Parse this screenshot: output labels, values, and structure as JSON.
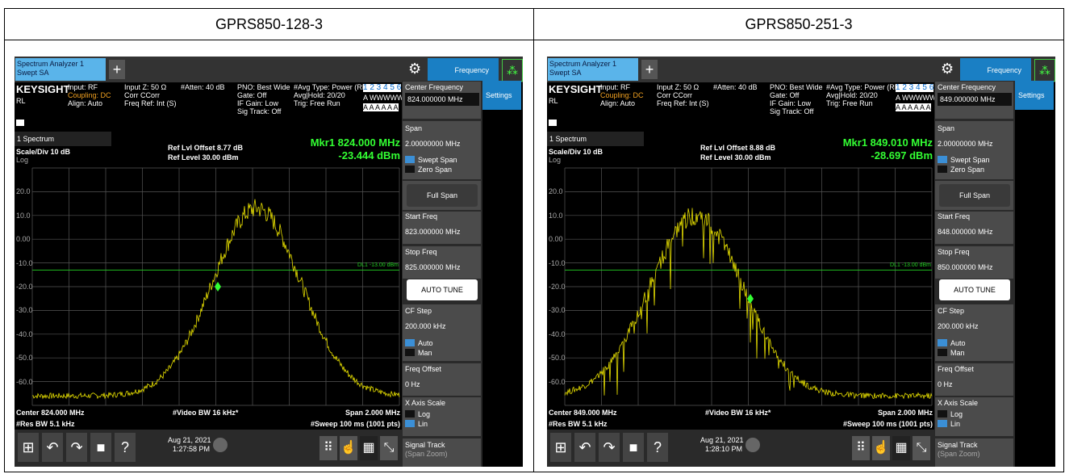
{
  "header": [
    "GPRS850-128-3",
    "GPRS850-251-3"
  ],
  "panels": [
    {
      "tab1": "Spectrum Analyzer 1",
      "tab2": "Swept SA",
      "freq_tab": "Frequency",
      "brand": "KEYSIGHT",
      "rl": "RL",
      "input": "Input: RF",
      "coupling": "Coupling: DC",
      "align": "Align: Auto",
      "input_z": "Input Z: 50 Ω",
      "corr": "Corr CCorr",
      "freq_ref": "Freq Ref: Int (S)",
      "atten": "#Atten: 40 dB",
      "pno": "PNO: Best Wide",
      "gate": "Gate: Off",
      "if_gain": "IF Gain: Low",
      "sig_track": "Sig Track: Off",
      "avg_type": "#Avg Type: Power (RMS)",
      "avg_hold": "Avg|Hold: 20/20",
      "trig": "Trig: Free Run",
      "trace_nums": "1 2 3 4 5 6",
      "trace_types": "A WWWWW",
      "detectors": "A A A A A A",
      "window": "1 Spectrum",
      "scale": "Scale/Div 10 dB",
      "log": "Log",
      "ref_offset": "Ref Lvl Offset 8.77 dB",
      "ref_level": "Ref Level 30.00 dBm",
      "mkr_freq": "Mkr1  824.000 MHz",
      "mkr_amp": "-23.444 dBm",
      "y_labels": [
        "20.0",
        "10.0",
        "0.00",
        "-10.0",
        "-20.0",
        "-30.0",
        "-40.0",
        "-50.0",
        "-60.0"
      ],
      "dl": "DL1 -13.00 dBm",
      "center": "Center 824.000 MHz",
      "res_bw": "#Res BW 5.1 kHz",
      "video_bw": "#Video BW 16 kHz*",
      "span": "Span 2.000 MHz",
      "sweep": "#Sweep 100 ms (1001 pts)",
      "date": "Aug 21, 2021",
      "time": "1:27:58 PM",
      "center_freq_label": "Center Frequency",
      "center_freq_value": "824.000000 MHz",
      "settings": "Settings",
      "span_label": "Span",
      "span_value": "2.00000000 MHz",
      "swept_span": "Swept Span",
      "zero_span": "Zero Span",
      "full_span": "Full Span",
      "start_label": "Start Freq",
      "start_value": "823.000000 MHz",
      "stop_label": "Stop Freq",
      "stop_value": "825.000000 MHz",
      "auto_tune": "AUTO TUNE",
      "cf_step_label": "CF Step",
      "cf_step_value": "200.000 kHz",
      "auto": "Auto",
      "man": "Man",
      "freq_offset_label": "Freq Offset",
      "freq_offset_value": "0 Hz",
      "x_axis_label": "X Axis Scale",
      "x_log": "Log",
      "x_lin": "Lin",
      "signal_track": "Signal Track",
      "span_zoom": "(Span Zoom)"
    },
    {
      "tab1": "Spectrum Analyzer 1",
      "tab2": "Swept SA",
      "freq_tab": "Frequency",
      "brand": "KEYSIGHT",
      "rl": "RL",
      "input": "Input: RF",
      "coupling": "Coupling: DC",
      "align": "Align: Auto",
      "input_z": "Input Z: 50 Ω",
      "corr": "Corr CCorr",
      "freq_ref": "Freq Ref: Int (S)",
      "atten": "#Atten: 40 dB",
      "pno": "PNO: Best Wide",
      "gate": "Gate: Off",
      "if_gain": "IF Gain: Low",
      "sig_track": "Sig Track: Off",
      "avg_type": "#Avg Type: Power (RMS)",
      "avg_hold": "Avg|Hold: 20/20",
      "trig": "Trig: Free Run",
      "trace_nums": "1 2 3 4 5 6",
      "trace_types": "A WWWWW",
      "detectors": "A A A A A A",
      "window": "1 Spectrum",
      "scale": "Scale/Div 10 dB",
      "log": "Log",
      "ref_offset": "Ref Lvl Offset 8.88 dB",
      "ref_level": "Ref Level 30.00 dBm",
      "mkr_freq": "Mkr1  849.010 MHz",
      "mkr_amp": "-28.697 dBm",
      "y_labels": [
        "20.0",
        "10.0",
        "0.00",
        "-10.0",
        "-20.0",
        "-30.0",
        "-40.0",
        "-50.0",
        "-60.0"
      ],
      "dl": "DL1 -13.00 dBm",
      "center": "Center 849.000 MHz",
      "res_bw": "#Res BW 5.1 kHz",
      "video_bw": "#Video BW 16 kHz*",
      "span": "Span 2.000 MHz",
      "sweep": "#Sweep 100 ms (1001 pts)",
      "date": "Aug 21, 2021",
      "time": "1:28:10 PM",
      "center_freq_label": "Center Frequency",
      "center_freq_value": "849.000000 MHz",
      "settings": "Settings",
      "span_label": "Span",
      "span_value": "2.00000000 MHz",
      "swept_span": "Swept Span",
      "zero_span": "Zero Span",
      "full_span": "Full Span",
      "start_label": "Start Freq",
      "start_value": "848.000000 MHz",
      "stop_label": "Stop Freq",
      "stop_value": "850.000000 MHz",
      "auto_tune": "AUTO TUNE",
      "cf_step_label": "CF Step",
      "cf_step_value": "200.000 kHz",
      "auto": "Auto",
      "man": "Man",
      "freq_offset_label": "Freq Offset",
      "freq_offset_value": "0 Hz",
      "x_axis_label": "X Axis Scale",
      "x_log": "Log",
      "x_lin": "Lin",
      "signal_track": "Signal Track",
      "span_zoom": "(Span Zoom)"
    }
  ]
}
